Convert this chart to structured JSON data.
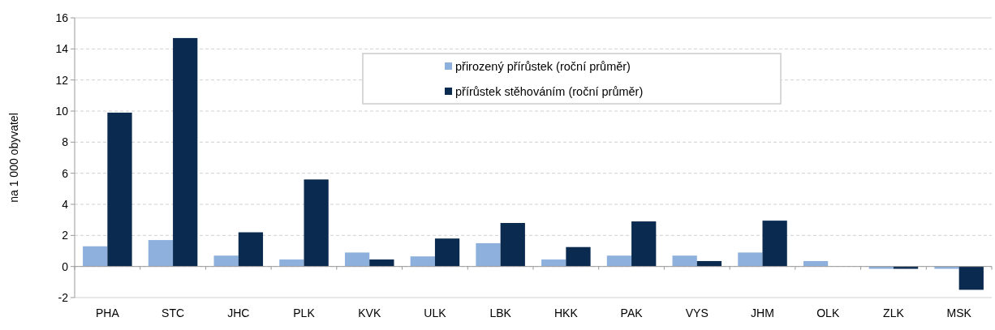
{
  "chart_data": {
    "type": "bar",
    "ylabel": "na 1 000 obyvatel",
    "categories": [
      "PHA",
      "STC",
      "JHC",
      "PLK",
      "KVK",
      "ULK",
      "LBK",
      "HKK",
      "PAK",
      "VYS",
      "JHM",
      "OLK",
      "ZLK",
      "MSK"
    ],
    "series": [
      {
        "name": "přirozený přírůstek (roční průměr)",
        "color": "#8db0dc",
        "values": [
          1.3,
          1.7,
          0.7,
          0.45,
          0.9,
          0.65,
          1.5,
          0.45,
          0.7,
          0.7,
          0.9,
          0.35,
          -0.15,
          -0.15
        ]
      },
      {
        "name": "přírůstek stěhováním (roční průměr)",
        "color": "#0a2a50",
        "values": [
          9.9,
          14.7,
          2.2,
          5.6,
          0.45,
          1.8,
          2.8,
          1.25,
          2.9,
          0.35,
          2.95,
          null,
          -0.15,
          -1.5
        ]
      }
    ],
    "ylim": [
      -2,
      16
    ],
    "yticks": [
      -2,
      0,
      2,
      4,
      6,
      8,
      10,
      12,
      14,
      16
    ],
    "grid": "y",
    "legend": "top"
  }
}
